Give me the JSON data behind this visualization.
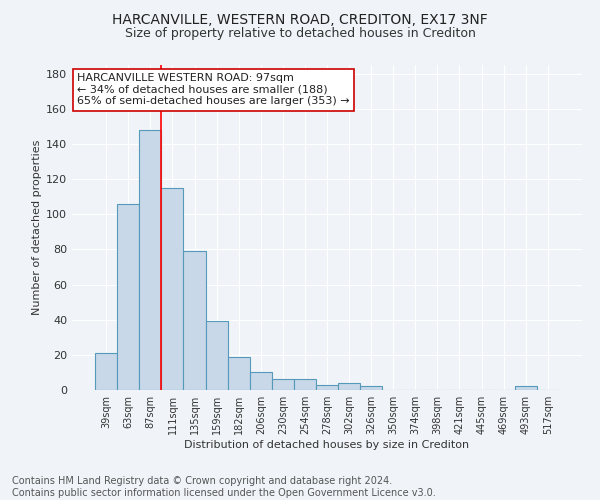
{
  "title_line1": "HARCANVILLE, WESTERN ROAD, CREDITON, EX17 3NF",
  "title_line2": "Size of property relative to detached houses in Crediton",
  "xlabel": "Distribution of detached houses by size in Crediton",
  "ylabel": "Number of detached properties",
  "bar_color": "#c8d8e8",
  "bar_edge_color": "#5599bb",
  "background_color": "#f0f4f8",
  "grid_color": "#ffffff",
  "categories": [
    "39sqm",
    "63sqm",
    "87sqm",
    "111sqm",
    "135sqm",
    "159sqm",
    "182sqm",
    "206sqm",
    "230sqm",
    "254sqm",
    "278sqm",
    "302sqm",
    "326sqm",
    "350sqm",
    "374sqm",
    "398sqm",
    "421sqm",
    "445sqm",
    "469sqm",
    "493sqm",
    "517sqm"
  ],
  "values": [
    21,
    106,
    148,
    115,
    79,
    39,
    19,
    10,
    6,
    6,
    3,
    4,
    2,
    0,
    0,
    0,
    0,
    0,
    0,
    2,
    0
  ],
  "red_line_x": 2.5,
  "annotation_line1": "HARCANVILLE WESTERN ROAD: 97sqm",
  "annotation_line2": "← 34% of detached houses are smaller (188)",
  "annotation_line3": "65% of semi-detached houses are larger (353) →",
  "annotation_box_color": "#ffffff",
  "annotation_box_edge": "#cc0000",
  "ylim": [
    0,
    185
  ],
  "yticks": [
    0,
    20,
    40,
    60,
    80,
    100,
    120,
    140,
    160,
    180
  ],
  "footer_text": "Contains HM Land Registry data © Crown copyright and database right 2024.\nContains public sector information licensed under the Open Government Licence v3.0.",
  "title_fontsize": 10,
  "subtitle_fontsize": 9,
  "annotation_fontsize": 8,
  "footer_fontsize": 7,
  "ylabel_fontsize": 8,
  "xlabel_fontsize": 8
}
